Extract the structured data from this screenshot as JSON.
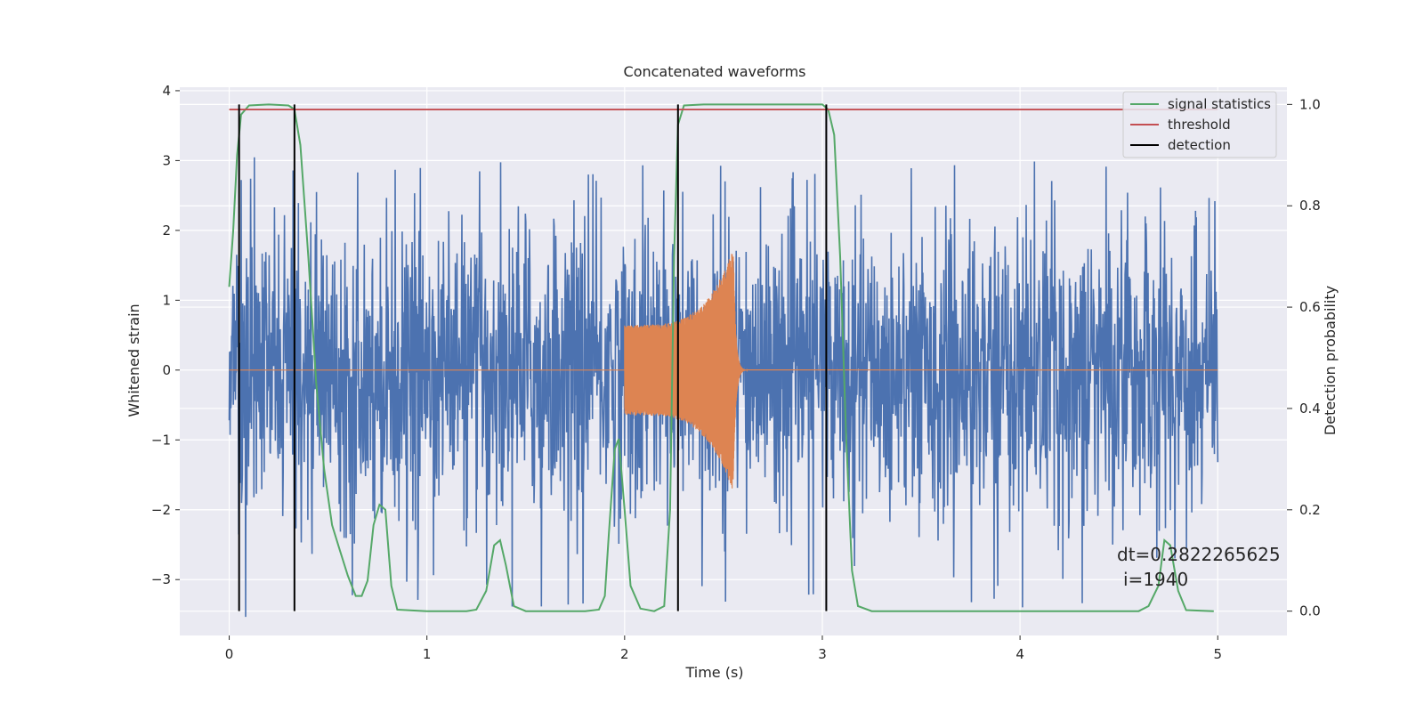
{
  "chart_data": {
    "type": "line",
    "title": "Concatenated waveforms",
    "xlabel": "Time (s)",
    "ylabel": "Whitened strain",
    "ylabel_right": "Detection probability",
    "xlim": [
      -0.25,
      5.35
    ],
    "ylim": [
      -3.8,
      4.05
    ],
    "ylim_right": [
      -0.048,
      1.034
    ],
    "xticks": [
      0,
      1,
      2,
      3,
      4,
      5
    ],
    "xtick_labels": [
      "0",
      "1",
      "2",
      "3",
      "4",
      "5"
    ],
    "yticks": [
      -3,
      -2,
      -1,
      0,
      1,
      2,
      3,
      4
    ],
    "ytick_labels": [
      "−3",
      "−2",
      "−1",
      "0",
      "1",
      "2",
      "3",
      "4"
    ],
    "yticks_right": [
      0.0,
      0.2,
      0.4,
      0.6,
      0.8,
      1.0
    ],
    "ytick_labels_right": [
      "0.0",
      "0.2",
      "0.4",
      "0.6",
      "0.8",
      "1.0"
    ],
    "grid": true,
    "legend_position": "top-right",
    "colors": {
      "strain": "#4c72b0",
      "injection": "#dd8452",
      "statistic": "#55a868",
      "threshold": "#c44e52",
      "detection": "#000000",
      "plot_bg": "#eaeaf2",
      "grid": "#ffffff"
    },
    "series": [
      {
        "name": "",
        "role": "strain",
        "x_range": [
          0,
          5
        ],
        "noise_envelope": [
          [
            0.0,
            2.0
          ],
          [
            0.05,
            2.6
          ],
          [
            0.2,
            2.3
          ],
          [
            0.5,
            2.2
          ],
          [
            1.0,
            2.3
          ],
          [
            1.5,
            2.4
          ],
          [
            2.0,
            2.3
          ],
          [
            2.3,
            2.4
          ],
          [
            2.55,
            2.3
          ],
          [
            3.0,
            2.2
          ],
          [
            3.5,
            2.3
          ],
          [
            4.0,
            2.4
          ],
          [
            4.5,
            2.3
          ],
          [
            5.0,
            2.1
          ]
        ]
      },
      {
        "name": "",
        "role": "injection",
        "x_range": [
          0,
          5
        ],
        "chirp_start": 2.0,
        "chirp_end": 2.55,
        "amplitude_start": 0.65,
        "amplitude_peak": 1.75,
        "ringdown_end": 2.62
      },
      {
        "name": "signal statistics",
        "role": "statistic",
        "axis": "right",
        "points": [
          [
            0.0,
            0.64
          ],
          [
            0.02,
            0.75
          ],
          [
            0.04,
            0.9
          ],
          [
            0.06,
            0.98
          ],
          [
            0.1,
            0.998
          ],
          [
            0.2,
            1.0
          ],
          [
            0.3,
            0.998
          ],
          [
            0.33,
            0.99
          ],
          [
            0.36,
            0.92
          ],
          [
            0.4,
            0.7
          ],
          [
            0.44,
            0.45
          ],
          [
            0.48,
            0.28
          ],
          [
            0.52,
            0.17
          ],
          [
            0.56,
            0.12
          ],
          [
            0.6,
            0.07
          ],
          [
            0.64,
            0.03
          ],
          [
            0.67,
            0.03
          ],
          [
            0.7,
            0.06
          ],
          [
            0.73,
            0.17
          ],
          [
            0.76,
            0.21
          ],
          [
            0.79,
            0.2
          ],
          [
            0.82,
            0.05
          ],
          [
            0.85,
            0.003
          ],
          [
            1.0,
            0.0
          ],
          [
            1.2,
            0.0
          ],
          [
            1.25,
            0.003
          ],
          [
            1.3,
            0.04
          ],
          [
            1.34,
            0.13
          ],
          [
            1.37,
            0.14
          ],
          [
            1.4,
            0.09
          ],
          [
            1.44,
            0.01
          ],
          [
            1.5,
            0.0
          ],
          [
            1.8,
            0.0
          ],
          [
            1.87,
            0.003
          ],
          [
            1.9,
            0.03
          ],
          [
            1.92,
            0.15
          ],
          [
            1.95,
            0.32
          ],
          [
            1.97,
            0.34
          ],
          [
            2.0,
            0.2
          ],
          [
            2.03,
            0.05
          ],
          [
            2.08,
            0.005
          ],
          [
            2.15,
            0.0
          ],
          [
            2.2,
            0.01
          ],
          [
            2.23,
            0.2
          ],
          [
            2.25,
            0.7
          ],
          [
            2.27,
            0.96
          ],
          [
            2.3,
            0.998
          ],
          [
            2.4,
            1.0
          ],
          [
            3.0,
            1.0
          ],
          [
            3.03,
            0.99
          ],
          [
            3.06,
            0.94
          ],
          [
            3.09,
            0.7
          ],
          [
            3.12,
            0.35
          ],
          [
            3.15,
            0.08
          ],
          [
            3.18,
            0.01
          ],
          [
            3.25,
            0.0
          ],
          [
            4.0,
            0.0
          ],
          [
            4.6,
            0.0
          ],
          [
            4.65,
            0.01
          ],
          [
            4.7,
            0.05
          ],
          [
            4.73,
            0.14
          ],
          [
            4.76,
            0.13
          ],
          [
            4.8,
            0.04
          ],
          [
            4.84,
            0.002
          ],
          [
            4.98,
            0.0
          ]
        ]
      },
      {
        "name": "threshold",
        "role": "threshold",
        "axis": "right",
        "x_range": [
          0,
          5
        ],
        "value": 0.99
      },
      {
        "name": "detection",
        "role": "detection",
        "axis": "right",
        "x_values": [
          0.05,
          0.33,
          2.27,
          3.02
        ],
        "y_range": [
          0,
          1
        ]
      }
    ],
    "annotations": [
      "dt=0.2822265625",
      "i=1940"
    ]
  }
}
